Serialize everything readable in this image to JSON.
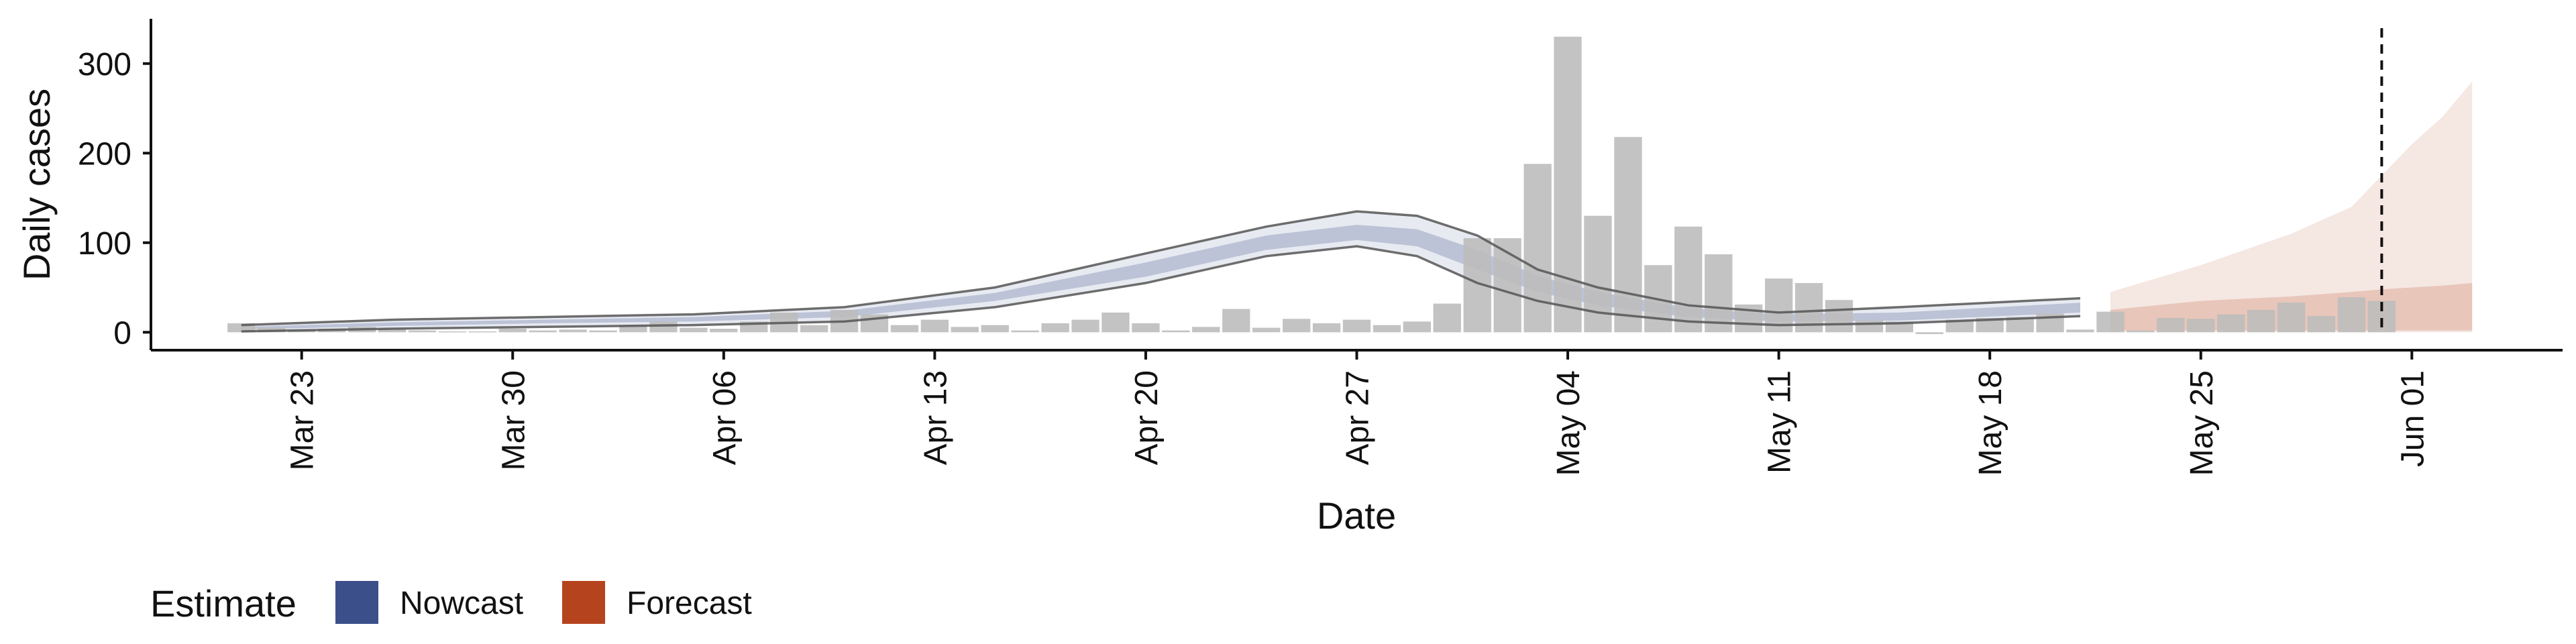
{
  "chart_data": {
    "type": "bar",
    "xlabel": "Date",
    "ylabel": "Daily cases",
    "x_range": [
      "2020-03-18",
      "2020-06-06"
    ],
    "ylim": [
      -20,
      350
    ],
    "y_ticks": [
      0,
      100,
      200,
      300
    ],
    "x_ticks": [
      {
        "date": "2020-03-23",
        "label": "Mar 23"
      },
      {
        "date": "2020-03-30",
        "label": "Mar 30"
      },
      {
        "date": "2020-04-06",
        "label": "Apr 06"
      },
      {
        "date": "2020-04-13",
        "label": "Apr 13"
      },
      {
        "date": "2020-04-20",
        "label": "Apr 20"
      },
      {
        "date": "2020-04-27",
        "label": "Apr 27"
      },
      {
        "date": "2020-05-04",
        "label": "May 04"
      },
      {
        "date": "2020-05-11",
        "label": "May 11"
      },
      {
        "date": "2020-05-18",
        "label": "May 18"
      },
      {
        "date": "2020-05-25",
        "label": "May 25"
      },
      {
        "date": "2020-06-01",
        "label": "Jun 01"
      }
    ],
    "grid": false,
    "bar_color": "#bdbdbd",
    "reported_cases": [
      {
        "date": "2020-03-21",
        "value": 10
      },
      {
        "date": "2020-03-22",
        "value": 5
      },
      {
        "date": "2020-03-23",
        "value": 3
      },
      {
        "date": "2020-03-24",
        "value": 4
      },
      {
        "date": "2020-03-25",
        "value": 6
      },
      {
        "date": "2020-03-26",
        "value": 4
      },
      {
        "date": "2020-03-27",
        "value": 2
      },
      {
        "date": "2020-03-28",
        "value": 1
      },
      {
        "date": "2020-03-29",
        "value": 1
      },
      {
        "date": "2020-03-30",
        "value": 4
      },
      {
        "date": "2020-03-31",
        "value": 2
      },
      {
        "date": "2020-04-01",
        "value": 3
      },
      {
        "date": "2020-04-02",
        "value": 2
      },
      {
        "date": "2020-04-03",
        "value": 8
      },
      {
        "date": "2020-04-04",
        "value": 12
      },
      {
        "date": "2020-04-05",
        "value": 5
      },
      {
        "date": "2020-04-06",
        "value": 4
      },
      {
        "date": "2020-04-07",
        "value": 12
      },
      {
        "date": "2020-04-08",
        "value": 22
      },
      {
        "date": "2020-04-09",
        "value": 8
      },
      {
        "date": "2020-04-10",
        "value": 25
      },
      {
        "date": "2020-04-11",
        "value": 20
      },
      {
        "date": "2020-04-12",
        "value": 8
      },
      {
        "date": "2020-04-13",
        "value": 14
      },
      {
        "date": "2020-04-14",
        "value": 6
      },
      {
        "date": "2020-04-15",
        "value": 8
      },
      {
        "date": "2020-04-16",
        "value": 2
      },
      {
        "date": "2020-04-17",
        "value": 10
      },
      {
        "date": "2020-04-18",
        "value": 14
      },
      {
        "date": "2020-04-19",
        "value": 22
      },
      {
        "date": "2020-04-20",
        "value": 10
      },
      {
        "date": "2020-04-21",
        "value": 2
      },
      {
        "date": "2020-04-22",
        "value": 6
      },
      {
        "date": "2020-04-23",
        "value": 26
      },
      {
        "date": "2020-04-24",
        "value": 5
      },
      {
        "date": "2020-04-25",
        "value": 15
      },
      {
        "date": "2020-04-26",
        "value": 10
      },
      {
        "date": "2020-04-27",
        "value": 14
      },
      {
        "date": "2020-04-28",
        "value": 8
      },
      {
        "date": "2020-04-29",
        "value": 12
      },
      {
        "date": "2020-04-30",
        "value": 32
      },
      {
        "date": "2020-05-01",
        "value": 105
      },
      {
        "date": "2020-05-02",
        "value": 105
      },
      {
        "date": "2020-05-03",
        "value": 188
      },
      {
        "date": "2020-05-04",
        "value": 330
      },
      {
        "date": "2020-05-05",
        "value": 130
      },
      {
        "date": "2020-05-06",
        "value": 218
      },
      {
        "date": "2020-05-07",
        "value": 75
      },
      {
        "date": "2020-05-08",
        "value": 118
      },
      {
        "date": "2020-05-09",
        "value": 87
      },
      {
        "date": "2020-05-10",
        "value": 31
      },
      {
        "date": "2020-05-11",
        "value": 60
      },
      {
        "date": "2020-05-12",
        "value": 55
      },
      {
        "date": "2020-05-13",
        "value": 36
      },
      {
        "date": "2020-05-14",
        "value": 13
      },
      {
        "date": "2020-05-15",
        "value": 12
      },
      {
        "date": "2020-05-16",
        "value": -2
      },
      {
        "date": "2020-05-17",
        "value": 14
      },
      {
        "date": "2020-05-18",
        "value": 16
      },
      {
        "date": "2020-05-19",
        "value": 17
      },
      {
        "date": "2020-05-20",
        "value": 21
      },
      {
        "date": "2020-05-21",
        "value": 3
      },
      {
        "date": "2020-05-22",
        "value": 23
      },
      {
        "date": "2020-05-23",
        "value": 2
      },
      {
        "date": "2020-05-24",
        "value": 16
      },
      {
        "date": "2020-05-25",
        "value": 15
      },
      {
        "date": "2020-05-26",
        "value": 20
      },
      {
        "date": "2020-05-27",
        "value": 25
      },
      {
        "date": "2020-05-28",
        "value": 33
      },
      {
        "date": "2020-05-29",
        "value": 18
      },
      {
        "date": "2020-05-30",
        "value": 39
      },
      {
        "date": "2020-05-31",
        "value": 35
      }
    ],
    "series": [
      {
        "name": "Nowcast",
        "color": "#3b4f8a",
        "x": [
          "2020-03-21",
          "2020-03-26",
          "2020-03-31",
          "2020-04-05",
          "2020-04-10",
          "2020-04-15",
          "2020-04-20",
          "2020-04-24",
          "2020-04-27",
          "2020-04-29",
          "2020-05-01",
          "2020-05-03",
          "2020-05-05",
          "2020-05-08",
          "2020-05-11",
          "2020-05-15",
          "2020-05-21"
        ],
        "median": [
          5,
          9,
          12,
          15,
          20,
          40,
          70,
          100,
          112,
          107,
          82,
          55,
          38,
          22,
          16,
          17,
          28
        ],
        "inner_lower": [
          3,
          7,
          10,
          12,
          17,
          35,
          62,
          92,
          103,
          96,
          70,
          45,
          30,
          17,
          12,
          13,
          22
        ],
        "inner_upper": [
          6,
          11,
          14,
          17,
          24,
          44,
          78,
          108,
          120,
          115,
          92,
          63,
          45,
          27,
          20,
          22,
          33
        ],
        "outer_lower": [
          1,
          4,
          6,
          8,
          12,
          28,
          55,
          85,
          96,
          85,
          55,
          35,
          22,
          12,
          8,
          10,
          18
        ],
        "outer_upper": [
          8,
          14,
          17,
          20,
          28,
          50,
          88,
          118,
          135,
          130,
          108,
          70,
          50,
          30,
          22,
          28,
          38
        ]
      },
      {
        "name": "Forecast",
        "color": "#b5441e",
        "x": [
          "2020-05-22",
          "2020-05-25",
          "2020-05-28",
          "2020-05-30",
          "2020-05-31",
          "2020-06-01",
          "2020-06-02",
          "2020-06-03"
        ],
        "inner_lower": [
          2,
          2,
          2,
          2,
          2,
          2,
          2,
          2
        ],
        "inner_upper": [
          25,
          35,
          40,
          45,
          48,
          50,
          52,
          55
        ],
        "outer_lower": [
          0,
          0,
          0,
          0,
          0,
          0,
          0,
          0
        ],
        "outer_upper": [
          45,
          75,
          110,
          140,
          175,
          210,
          240,
          280
        ]
      }
    ],
    "vline": {
      "date": "2020-05-31",
      "style": "dashed"
    },
    "legend": {
      "title": "Estimate",
      "placement": "bottom-left",
      "items": [
        {
          "label": "Nowcast",
          "color": "#3b4f8a"
        },
        {
          "label": "Forecast",
          "color": "#b5441e"
        }
      ]
    }
  }
}
